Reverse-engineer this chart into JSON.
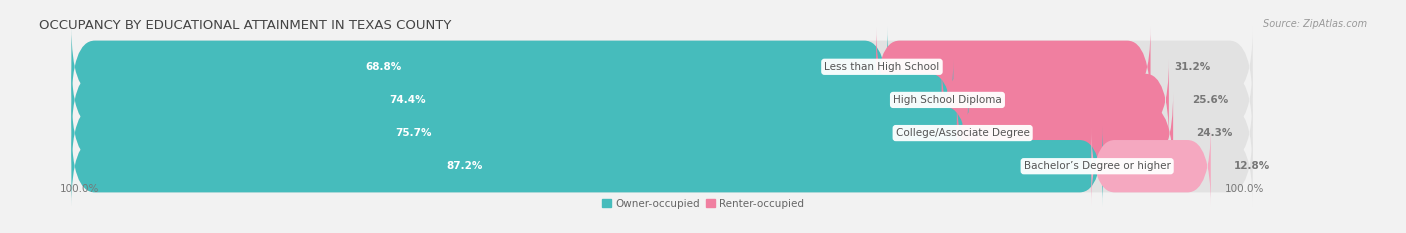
{
  "title": "OCCUPANCY BY EDUCATIONAL ATTAINMENT IN TEXAS COUNTY",
  "source": "Source: ZipAtlas.com",
  "categories": [
    "Less than High School",
    "High School Diploma",
    "College/Associate Degree",
    "Bachelor’s Degree or higher"
  ],
  "owner_pct": [
    68.8,
    74.4,
    75.7,
    87.2
  ],
  "renter_pct": [
    31.2,
    25.6,
    24.3,
    12.8
  ],
  "owner_color": "#46BCBC",
  "renter_color_top3": "#F07FA0",
  "renter_color_bottom": "#F5A8C0",
  "bg_color": "#f2f2f2",
  "bar_bg_color": "#e2e2e2",
  "title_fontsize": 9.5,
  "pct_fontsize": 7.5,
  "cat_fontsize": 7.5,
  "source_fontsize": 7,
  "axis_label_fontsize": 7.5,
  "legend_fontsize": 7.5
}
